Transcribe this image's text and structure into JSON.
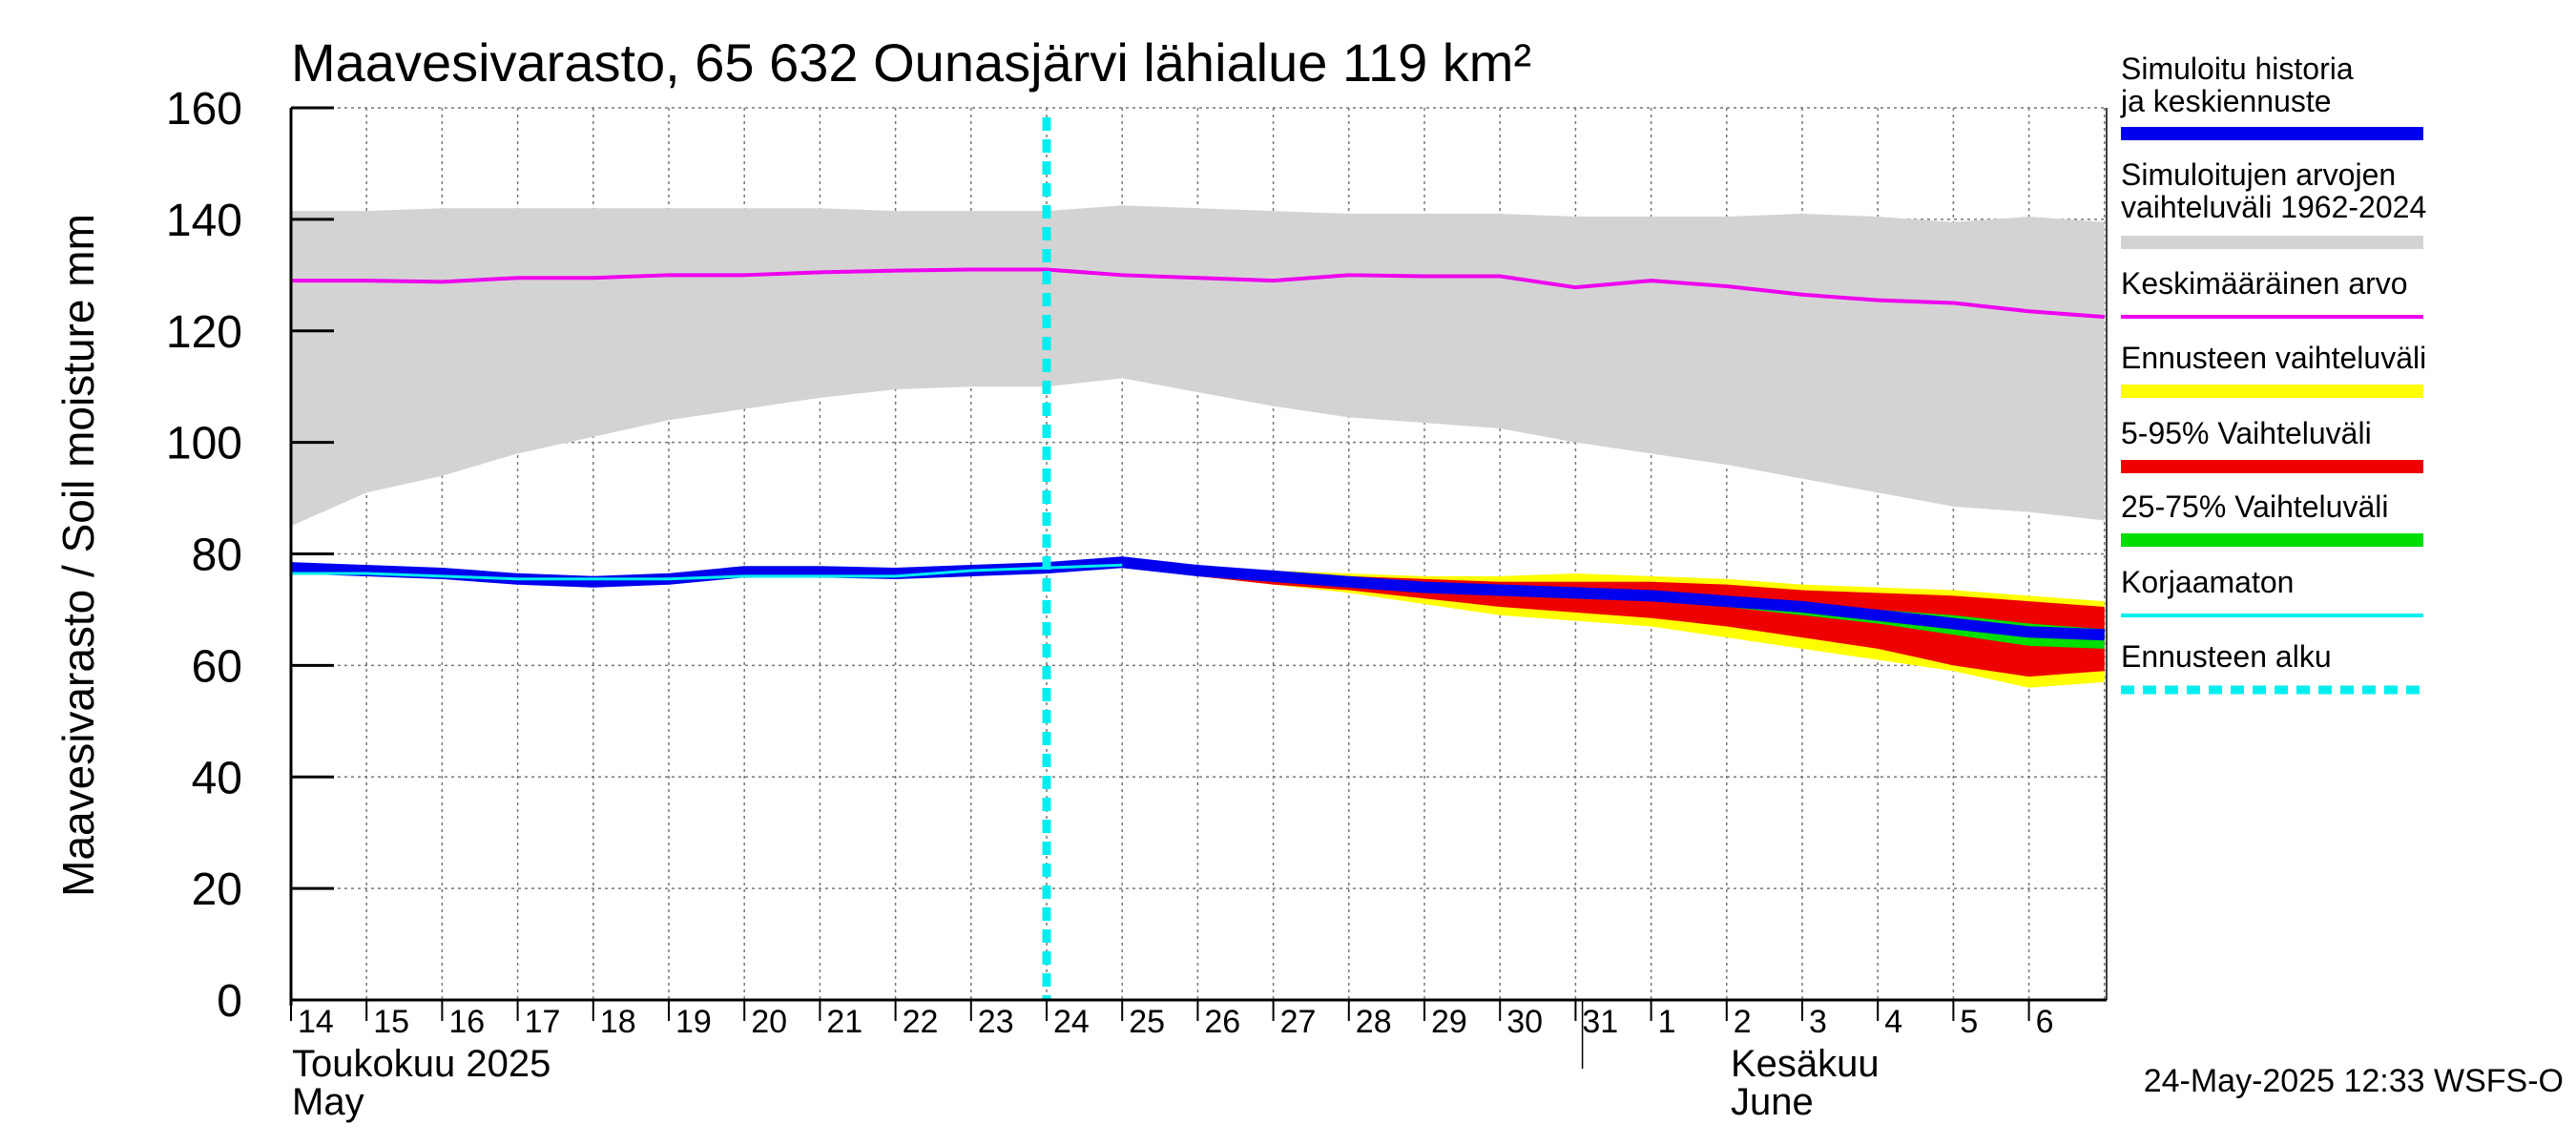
{
  "chart_data": {
    "type": "area",
    "title": "Maavesivarasto, 65 632 Ounasjärvi lähialue 119 km²",
    "ylabel": "Maavesivarasto / Soil moisture   mm",
    "ylim": [
      0,
      160
    ],
    "yticks": [
      0,
      20,
      40,
      60,
      80,
      100,
      120,
      140,
      160
    ],
    "grid": true,
    "x_days": [
      "14",
      "15",
      "16",
      "17",
      "18",
      "19",
      "20",
      "21",
      "22",
      "23",
      "24",
      "25",
      "26",
      "27",
      "28",
      "29",
      "30",
      "31",
      "1",
      "2",
      "3",
      "4",
      "5",
      "6"
    ],
    "month_labels": {
      "may_fi": "Toukokuu  2025",
      "may_en": "May",
      "june_fi": "Kesäkuu",
      "june_en": "June"
    },
    "forecast_start_day": 10.0,
    "timestamp": "24-May-2025 12:33 WSFS-O",
    "legend_position": "right",
    "legend": [
      {
        "label": "Simuloitu historia ja keskiennuste",
        "color": "#0000ee",
        "style": "thick"
      },
      {
        "label": "Simuloitujen arvojen vaihteluväli 1962-2024",
        "color": "#d3d3d3",
        "style": "thick"
      },
      {
        "label": "Keskimääräinen arvo",
        "color": "#ee00ee",
        "style": "thin"
      },
      {
        "label": "Ennusteen vaihteluväli",
        "color": "#ffff00",
        "style": "thick"
      },
      {
        "label": "5-95% Vaihteluväli",
        "color": "#ee0000",
        "style": "thick"
      },
      {
        "label": "25-75% Vaihteluväli",
        "color": "#00dd00",
        "style": "thick"
      },
      {
        "label": "Korjaamaton",
        "color": "#00eeee",
        "style": "thin"
      },
      {
        "label": "Ennusteen alku",
        "color": "#00eeee",
        "style": "dashed"
      }
    ],
    "historical_range": {
      "x": [
        0,
        1,
        2,
        3,
        4,
        5,
        6,
        7,
        8,
        9,
        10,
        11,
        12,
        13,
        14,
        15,
        16,
        17,
        18,
        19,
        20,
        21,
        22,
        23,
        24
      ],
      "upper": [
        141.5,
        141.5,
        142,
        142,
        142,
        142,
        142,
        142,
        141.5,
        141.5,
        141.5,
        142.5,
        142,
        141.5,
        141,
        141,
        141,
        140.5,
        140.5,
        140.5,
        141,
        140.5,
        139.5,
        140.5,
        139.5
      ],
      "lower": [
        85,
        91,
        94,
        98,
        101,
        104,
        106,
        108,
        109.5,
        110,
        110,
        111.5,
        109,
        106.5,
        104.5,
        103.5,
        102.5,
        100,
        98,
        96,
        93.5,
        91,
        88.5,
        87.5,
        86
      ]
    },
    "mean_value": {
      "x": [
        0,
        1,
        2,
        3,
        4,
        5,
        6,
        7,
        8,
        9,
        10,
        11,
        12,
        13,
        14,
        15,
        16,
        17,
        18,
        19,
        20,
        21,
        22,
        23,
        24
      ],
      "y": [
        129,
        129,
        128.8,
        129.5,
        129.5,
        130,
        130,
        130.5,
        130.8,
        131,
        131,
        130,
        129.5,
        129,
        130,
        129.8,
        129.8,
        127.8,
        129,
        128,
        126.5,
        125.5,
        125,
        123.5,
        122.5
      ]
    },
    "forecast_x": [
      11,
      12,
      13,
      14,
      15,
      16,
      17,
      18,
      19,
      20,
      21,
      22,
      23,
      24
    ],
    "forecast_range": {
      "upper": [
        78.5,
        77.5,
        77,
        76.5,
        76,
        76,
        76.5,
        76,
        75.5,
        74.5,
        74,
        73.5,
        72.5,
        71.5
      ],
      "lower": [
        78,
        76,
        74.5,
        73,
        71,
        69,
        68,
        67,
        65,
        63,
        61,
        59,
        56,
        57
      ]
    },
    "p5_95": {
      "upper": [
        78.5,
        77,
        76.5,
        76,
        75.5,
        75,
        75,
        75,
        74.5,
        73.5,
        73,
        72.5,
        71.5,
        70.5
      ],
      "lower": [
        78,
        76,
        74.5,
        73.5,
        72,
        70.5,
        69.5,
        68.5,
        67,
        65,
        63,
        60,
        58,
        59
      ]
    },
    "p25_75": {
      "upper": [
        78.5,
        77,
        76,
        75,
        74.5,
        74,
        73.5,
        73,
        72,
        71,
        70,
        69,
        67.5,
        66.5
      ],
      "lower": [
        78,
        76.5,
        75,
        74,
        73,
        72.5,
        72,
        71.5,
        70.5,
        69,
        67.5,
        65.5,
        63.5,
        63
      ]
    },
    "simulated_history": {
      "x": [
        0,
        1,
        2,
        3,
        4,
        5,
        6,
        7,
        8,
        9,
        10,
        11,
        12,
        13,
        14,
        15,
        16,
        17,
        18,
        19,
        20,
        21,
        22,
        23,
        24
      ],
      "y": [
        77.5,
        77,
        76.5,
        75.5,
        75,
        75.5,
        76.8,
        76.8,
        76.5,
        77,
        77.5,
        78.5,
        77,
        76,
        75,
        74,
        73.5,
        73,
        72.5,
        71.5,
        70.5,
        69,
        67.5,
        66,
        65.5
      ]
    },
    "uncorrected": {
      "x": [
        0,
        1,
        2,
        3,
        4,
        5,
        6,
        7,
        8,
        9,
        10,
        11
      ],
      "y": [
        76.5,
        76.5,
        76,
        75.5,
        75.5,
        75.5,
        76,
        76,
        76,
        77,
        77.5,
        78
      ]
    }
  }
}
